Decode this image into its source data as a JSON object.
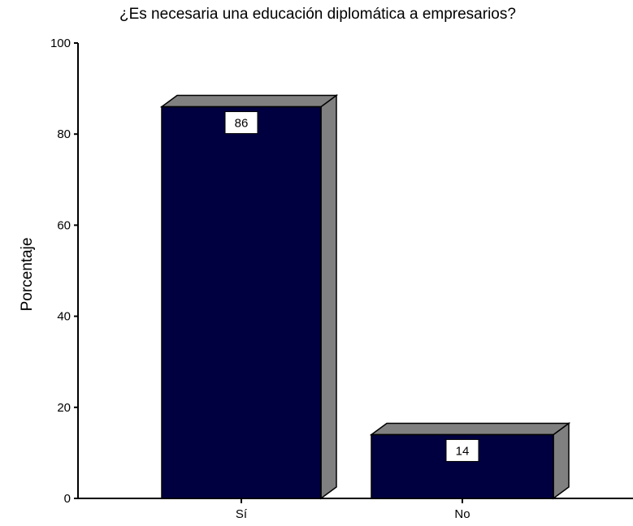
{
  "chart_data": {
    "type": "bar",
    "title": "¿Es necesaria una educación diplomática a empresarios?",
    "xlabel": "",
    "ylabel": "Porcentaje",
    "categories": [
      "Sí",
      "No"
    ],
    "values": [
      86,
      14
    ],
    "data_labels": [
      "86",
      "14"
    ],
    "ylim": [
      0,
      100
    ],
    "yticks": [
      "0",
      "20",
      "40",
      "60",
      "80",
      "100"
    ],
    "grid": false,
    "bar_color": "#000040",
    "bar_side_color": "#808080",
    "bar_top_color": "#808080"
  }
}
